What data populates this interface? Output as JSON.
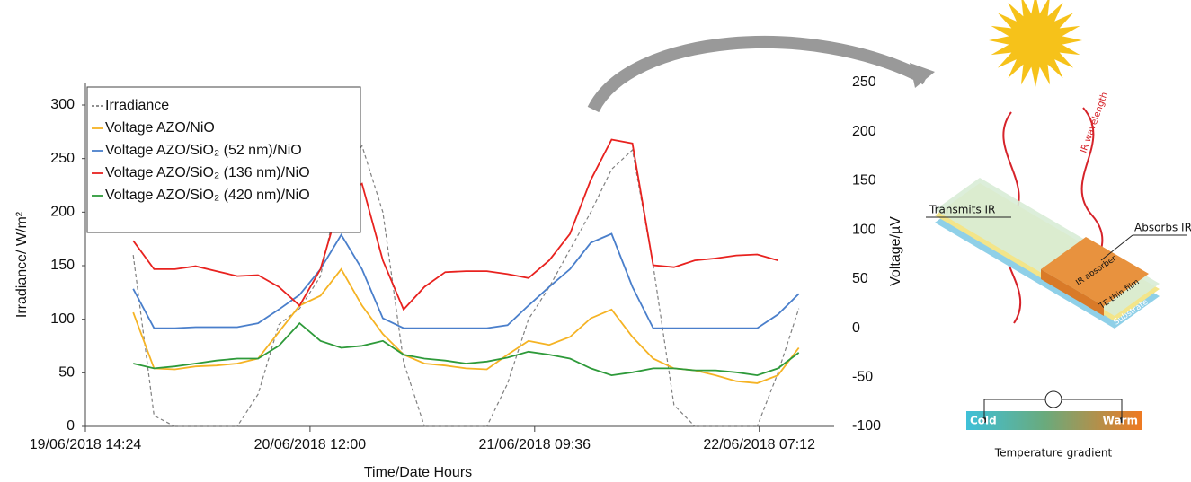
{
  "chart_data": {
    "type": "line",
    "xlabel": "Time/Date Hours",
    "ylabel": "Irradiance/ W/m²",
    "y2label": "Voltage/µV",
    "xlim": [
      "2018-06-19T14:24",
      "2018-06-22T14:24"
    ],
    "xticks": [
      {
        "value": "2018-06-19T14:24",
        "label": "19/06/2018 14:24"
      },
      {
        "value": "2018-06-20T12:00",
        "label": "20/06/2018 12:00"
      },
      {
        "value": "2018-06-21T09:36",
        "label": "21/06/2018 09:36"
      },
      {
        "value": "2018-06-22T07:12",
        "label": "22/06/2018 07:12"
      }
    ],
    "ylim": [
      0,
      300
    ],
    "yticks": [
      0,
      50,
      100,
      150,
      200,
      250,
      300
    ],
    "y2lim": [
      -100,
      250
    ],
    "y2ticks": [
      -100,
      -50,
      0,
      50,
      100,
      150,
      200,
      250
    ],
    "legend": "upper left",
    "x": [
      "2018-06-19T19:00",
      "2018-06-19T21:00",
      "2018-06-19T23:00",
      "2018-06-20T01:00",
      "2018-06-20T03:00",
      "2018-06-20T05:00",
      "2018-06-20T07:00",
      "2018-06-20T09:00",
      "2018-06-20T11:00",
      "2018-06-20T13:00",
      "2018-06-20T15:00",
      "2018-06-20T17:00",
      "2018-06-20T19:00",
      "2018-06-20T21:00",
      "2018-06-20T23:00",
      "2018-06-21T01:00",
      "2018-06-21T03:00",
      "2018-06-21T05:00",
      "2018-06-21T07:00",
      "2018-06-21T09:00",
      "2018-06-21T11:00",
      "2018-06-21T13:00",
      "2018-06-21T15:00",
      "2018-06-21T17:00",
      "2018-06-21T19:00",
      "2018-06-21T21:00",
      "2018-06-21T23:00",
      "2018-06-22T01:00",
      "2018-06-22T03:00",
      "2018-06-22T05:00",
      "2018-06-22T07:00",
      "2018-06-22T09:00",
      "2018-06-22T11:00"
    ],
    "series": [
      {
        "name": "Irradiance",
        "color": "#808080",
        "dashed": true,
        "values": [
          160,
          10,
          0,
          0,
          0,
          0,
          30,
          95,
          110,
          140,
          230,
          262,
          200,
          60,
          0,
          0,
          0,
          0,
          40,
          100,
          130,
          165,
          200,
          240,
          258,
          150,
          20,
          0,
          0,
          0,
          0,
          50,
          110
        ]
      },
      {
        "name": "Voltage AZO/NiO",
        "color": "#f5b324",
        "axis": "y2",
        "values": [
          16,
          -41,
          -42,
          -39,
          -38,
          -36,
          -31,
          -4,
          23,
          33,
          60,
          23,
          -6,
          -27,
          -36,
          -38,
          -41,
          -42,
          -27,
          -13,
          -17,
          -9,
          10,
          19,
          -9,
          -31,
          -41,
          -43,
          -48,
          -54,
          -56,
          -48,
          -20
        ]
      },
      {
        "name": "Voltage AZO/SiO₂ (52 nm)/NiO",
        "color": "#4a7fcb",
        "axis": "y2",
        "values": [
          40,
          0,
          0,
          1,
          1,
          1,
          5,
          19,
          34,
          60,
          95,
          60,
          10,
          0,
          0,
          0,
          0,
          0,
          3,
          23,
          42,
          60,
          87,
          96,
          42,
          0,
          0,
          0,
          0,
          0,
          0,
          14,
          35
        ]
      },
      {
        "name": "Voltage AZO/SiO₂ (136 nm)/NiO",
        "color": "#e8221f",
        "axis": "y2",
        "values": [
          89,
          60,
          60,
          63,
          58,
          53,
          54,
          42,
          23,
          60,
          133,
          147,
          69,
          19,
          42,
          57,
          58,
          58,
          55,
          51,
          69,
          96,
          151,
          192,
          188,
          64,
          62,
          69,
          71,
          74,
          75,
          69,
          null
        ]
      },
      {
        "name": "Voltage AZO/SiO₂ (420 nm)/NiO",
        "color": "#2e9a3a",
        "axis": "y2",
        "values": [
          -36,
          -41,
          -39,
          -36,
          -33,
          -31,
          -31,
          -18,
          5,
          -13,
          -20,
          -18,
          -13,
          -27,
          -31,
          -33,
          -36,
          -34,
          -30,
          -24,
          -27,
          -31,
          -41,
          -48,
          -45,
          -41,
          -41,
          -43,
          -43,
          -45,
          -48,
          -41,
          -25
        ]
      }
    ]
  },
  "diagram": {
    "wavelength": "IR wavelength",
    "transmits": "Transmits IR",
    "absorbs": "Absorbs IR",
    "layers": [
      "IR absorber",
      "TE thin film",
      "Substrate"
    ],
    "cold": "Cold",
    "warm": "Warm",
    "gradient": "Temperature gradient"
  }
}
